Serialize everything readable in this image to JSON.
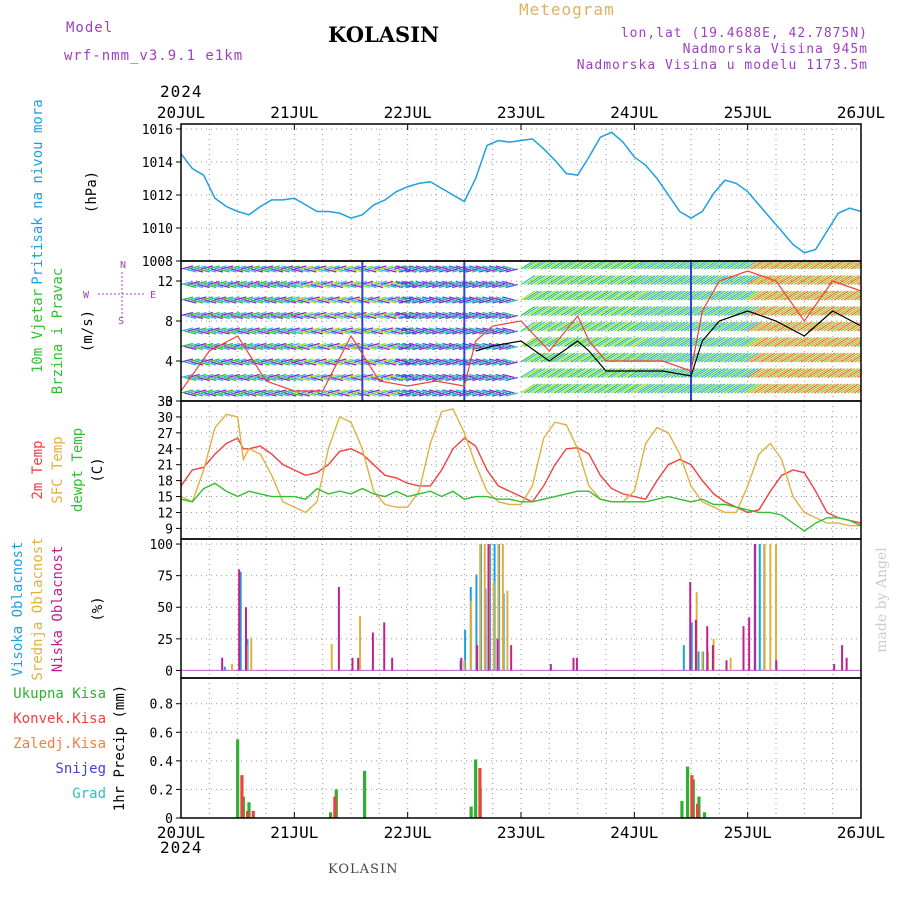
{
  "header": {
    "model_label": "Model",
    "model_name": "wrf-nmm_v3.9.1 e1km",
    "location": "KOLASIN",
    "product": "Meteogram",
    "coords": "lon,lat (19.4688E, 42.7875N)",
    "elevation": "Nadmorska Visina 945m",
    "model_elevation": "Nadmorska Visina u modelu 1173.5m",
    "footer_location": "KOLASIN",
    "credit": "made by Angel"
  },
  "time_axis": {
    "year": "2024",
    "labels": [
      "20JUL",
      "21JUL",
      "22JUL",
      "23JUL",
      "24JUL",
      "25JUL",
      "26JUL"
    ],
    "days": 6
  },
  "colors": {
    "pressure": "#1ea0e0",
    "temp2m": "#f04040",
    "sfc_temp": "#e0b040",
    "dewpt": "#30c030",
    "high_cloud": "#1ea0e0",
    "mid_cloud": "#e0b040",
    "low_cloud": "#c02090",
    "precip_total": "#30b030",
    "precip_conv": "#f04040",
    "precip_frz": "#f08040",
    "snow": "#4040e0",
    "graupel": "#30c0c0",
    "wind_gust": "#f04040",
    "wind_speed": "#000000",
    "legend_wind": "#a040c0"
  },
  "chart_data": [
    {
      "type": "line",
      "name": "pressure",
      "ylabel": "(hPa)",
      "panel_label": "Pritisak na nivou mora",
      "ylim": [
        1008,
        1016.3
      ],
      "yticks": [
        1008,
        1010,
        1012,
        1014,
        1016
      ],
      "series": [
        {
          "x": [
            0,
            0.1,
            0.2,
            0.3,
            0.4,
            0.5,
            0.6,
            0.7,
            0.8,
            0.9,
            1.0,
            1.1,
            1.2,
            1.3,
            1.4,
            1.5,
            1.6,
            1.7,
            1.8,
            1.9,
            2.0,
            2.1,
            2.2,
            2.3,
            2.4,
            2.5,
            2.6,
            2.7,
            2.8,
            2.9,
            3.0,
            3.1,
            3.2,
            3.3,
            3.4,
            3.5,
            3.6,
            3.7,
            3.8,
            3.9,
            4.0,
            4.1,
            4.2,
            4.3,
            4.4,
            4.5,
            4.6,
            4.7,
            4.8,
            4.9,
            5.0,
            5.1,
            5.2,
            5.3,
            5.4,
            5.5,
            5.6,
            5.7,
            5.8,
            5.9,
            6.0
          ],
          "values": [
            1014.5,
            1013.6,
            1013.2,
            1011.8,
            1011.3,
            1011.0,
            1010.8,
            1011.3,
            1011.7,
            1011.7,
            1011.8,
            1011.4,
            1011.0,
            1011.0,
            1010.9,
            1010.6,
            1010.8,
            1011.4,
            1011.7,
            1012.2,
            1012.5,
            1012.7,
            1012.8,
            1012.4,
            1012.0,
            1011.6,
            1013.0,
            1015.0,
            1015.3,
            1015.2,
            1015.3,
            1015.4,
            1014.8,
            1014.1,
            1013.3,
            1013.2,
            1014.3,
            1015.5,
            1015.8,
            1015.2,
            1014.3,
            1013.8,
            1013.0,
            1012.0,
            1011.0,
            1010.6,
            1011.0,
            1012.1,
            1012.9,
            1012.7,
            1012.2,
            1011.4,
            1010.6,
            1009.8,
            1009.0,
            1008.5,
            1008.7,
            1009.8,
            1010.9,
            1011.2,
            1011.0
          ]
        }
      ]
    },
    {
      "type": "line",
      "name": "wind",
      "ylabel": "(m/s)",
      "panel_label": [
        "10m Vjetar",
        "Brzina i Pravac"
      ],
      "legend_wind": [
        "N",
        "W",
        "E",
        "S"
      ],
      "ylim": [
        0,
        14
      ],
      "yticks": [
        0,
        4,
        8,
        12
      ],
      "series": [
        {
          "name_key": "wind_gust",
          "x": [
            0,
            0.25,
            0.5,
            0.75,
            1.0,
            1.25,
            1.5,
            1.75,
            2.0,
            2.25,
            2.5,
            2.6,
            2.75,
            3.0,
            3.25,
            3.5,
            3.6,
            3.75,
            4.0,
            4.25,
            4.5,
            4.6,
            4.75,
            5.0,
            5.25,
            5.5,
            5.75,
            6.0
          ],
          "values": [
            1,
            5,
            6.5,
            2,
            1,
            1,
            6.5,
            2,
            1.5,
            2,
            1.5,
            6,
            7.5,
            8,
            5,
            8.5,
            6,
            4,
            4,
            4,
            3,
            9,
            12,
            13,
            12,
            8,
            12,
            11
          ]
        },
        {
          "name_key": "wind_speed",
          "x": [
            2.6,
            2.75,
            3.0,
            3.25,
            3.5,
            3.6,
            3.75,
            4.0,
            4.25,
            4.5,
            4.6,
            4.75,
            5.0,
            5.25,
            5.5,
            5.75,
            6.0
          ],
          "values": [
            5,
            5.5,
            6,
            4,
            6,
            5,
            3,
            3,
            3,
            2.5,
            6,
            8,
            9,
            8,
            6.5,
            9,
            7.5
          ]
        }
      ]
    },
    {
      "type": "line",
      "name": "temperature",
      "ylabel": "(C)",
      "panel_label": [
        "2m Temp",
        "SFC Temp",
        "dewpt Temp"
      ],
      "ylim": [
        7,
        33
      ],
      "yticks": [
        9,
        12,
        15,
        18,
        21,
        24,
        27,
        30,
        33
      ],
      "series": [
        {
          "name_key": "temp2m",
          "x": [
            0,
            0.1,
            0.2,
            0.3,
            0.4,
            0.5,
            0.55,
            0.6,
            0.7,
            0.8,
            0.9,
            1.0,
            1.1,
            1.2,
            1.3,
            1.4,
            1.5,
            1.6,
            1.7,
            1.8,
            1.9,
            2.0,
            2.1,
            2.2,
            2.3,
            2.4,
            2.5,
            2.6,
            2.7,
            2.8,
            2.9,
            3.0,
            3.1,
            3.2,
            3.3,
            3.4,
            3.5,
            3.6,
            3.7,
            3.8,
            3.9,
            4.0,
            4.1,
            4.2,
            4.3,
            4.4,
            4.5,
            4.6,
            4.7,
            4.8,
            4.9,
            5.0,
            5.1,
            5.2,
            5.3,
            5.4,
            5.5,
            5.6,
            5.7,
            5.8,
            5.9,
            6.0
          ],
          "values": [
            17,
            20,
            20.5,
            23,
            25,
            26,
            24,
            24,
            24.5,
            23,
            21,
            20,
            19,
            19.5,
            21,
            23.5,
            24,
            23,
            21,
            19,
            18.5,
            17.5,
            17,
            17,
            20,
            24,
            26,
            24.5,
            20,
            17,
            16,
            15,
            14,
            17,
            21,
            24,
            24.2,
            23,
            19,
            16.5,
            15.5,
            15,
            14.5,
            18,
            21,
            22,
            21,
            18,
            15.5,
            14,
            13,
            12,
            12.5,
            16,
            19,
            20,
            19.5,
            16,
            12,
            11,
            10.5,
            10
          ]
        },
        {
          "name_key": "sfc_temp",
          "x": [
            0,
            0.1,
            0.2,
            0.3,
            0.4,
            0.5,
            0.55,
            0.6,
            0.7,
            0.8,
            0.9,
            1.0,
            1.1,
            1.2,
            1.3,
            1.4,
            1.5,
            1.6,
            1.7,
            1.8,
            1.9,
            2.0,
            2.1,
            2.2,
            2.3,
            2.4,
            2.5,
            2.6,
            2.7,
            2.8,
            2.9,
            3.0,
            3.1,
            3.2,
            3.3,
            3.4,
            3.5,
            3.6,
            3.7,
            3.8,
            3.9,
            4.0,
            4.1,
            4.2,
            4.3,
            4.4,
            4.5,
            4.6,
            4.7,
            4.8,
            4.9,
            5.0,
            5.1,
            5.2,
            5.3,
            5.4,
            5.5,
            5.6,
            5.7,
            5.8,
            5.9,
            6.0
          ],
          "values": [
            15,
            14,
            20,
            28,
            30.5,
            30,
            22,
            24,
            23,
            19,
            14,
            13,
            12,
            14,
            24,
            30,
            29,
            24,
            16,
            13.5,
            13,
            13,
            16,
            25,
            31,
            31.5,
            27,
            21,
            16,
            14,
            13.5,
            13.5,
            17,
            26,
            29,
            28.5,
            24,
            17,
            14.5,
            14,
            14,
            16,
            25,
            28,
            27,
            23,
            17,
            14,
            13,
            12,
            12,
            17,
            23,
            25,
            22,
            15,
            12,
            11,
            10,
            10,
            9.5,
            9.5
          ]
        },
        {
          "name_key": "dewpt",
          "x": [
            0,
            0.1,
            0.2,
            0.3,
            0.4,
            0.5,
            0.6,
            0.7,
            0.8,
            0.9,
            1.0,
            1.1,
            1.2,
            1.3,
            1.4,
            1.5,
            1.6,
            1.7,
            1.8,
            1.9,
            2.0,
            2.1,
            2.2,
            2.3,
            2.4,
            2.5,
            2.6,
            2.7,
            2.8,
            2.9,
            3.0,
            3.1,
            3.2,
            3.3,
            3.4,
            3.5,
            3.6,
            3.7,
            3.8,
            3.9,
            4.0,
            4.1,
            4.2,
            4.3,
            4.4,
            4.5,
            4.6,
            4.7,
            4.8,
            4.9,
            5.0,
            5.1,
            5.2,
            5.3,
            5.4,
            5.5,
            5.6,
            5.7,
            5.8,
            5.9,
            6.0
          ],
          "values": [
            14.5,
            14,
            16.5,
            17.5,
            16,
            15,
            16,
            15.5,
            15,
            15,
            15,
            14.5,
            16.5,
            15.5,
            16,
            15.5,
            16.5,
            15.5,
            15,
            16,
            15,
            15.5,
            16,
            15,
            16,
            14.5,
            15,
            15,
            14.5,
            14.5,
            14,
            14,
            14.5,
            15,
            15.5,
            16,
            16,
            14.5,
            14,
            14,
            14,
            14,
            14.5,
            15,
            14.5,
            14,
            14.5,
            13.5,
            13.5,
            13,
            12.5,
            12,
            12,
            11.5,
            10,
            8.5,
            10,
            11,
            11,
            10.5,
            9.5
          ]
        }
      ]
    },
    {
      "type": "bar",
      "name": "cloud_cover",
      "ylabel": "(%)",
      "panel_label": [
        "Visoka Oblacnost",
        "Srednja Oblacnost",
        "Niska Oblacnost"
      ],
      "ylim": [
        -6,
        104
      ],
      "yticks": [
        0,
        25,
        50,
        75,
        100
      ],
      "series": [
        {
          "name_key": "high_cloud",
          "x": [
            0.4,
            0.54,
            0.6,
            2.48,
            2.52,
            2.57,
            2.62,
            2.66,
            2.7,
            2.74,
            2.78,
            2.82,
            2.86,
            4.45,
            4.52,
            4.58,
            4.62,
            5.08,
            5.12,
            5.16
          ],
          "values": [
            3,
            78,
            25,
            8,
            32,
            66,
            76,
            100,
            65,
            100,
            100,
            100,
            61,
            20,
            38,
            15,
            15,
            100,
            100,
            100
          ]
        },
        {
          "name_key": "mid_cloud",
          "x": [
            0.45,
            0.58,
            0.62,
            1.33,
            1.58,
            2.5,
            2.56,
            2.64,
            2.68,
            2.72,
            2.76,
            2.8,
            2.84,
            2.88,
            4.55,
            4.6,
            4.65,
            4.7,
            4.85,
            5.15,
            5.2,
            5.25
          ],
          "values": [
            5,
            20,
            26,
            21,
            43,
            8,
            55,
            100,
            100,
            100,
            70,
            100,
            100,
            63,
            62,
            15,
            15,
            25,
            10,
            100,
            100,
            100
          ]
        },
        {
          "name_key": "low_cloud",
          "x": [
            0.35,
            0.5,
            0.56,
            1.38,
            1.5,
            1.55,
            1.68,
            1.78,
            1.85,
            2.46,
            2.6,
            2.7,
            2.78,
            2.9,
            3.25,
            3.45,
            3.48,
            4.48,
            4.53,
            4.63,
            4.68,
            4.8,
            4.95,
            5.0,
            5.05,
            5.24,
            5.75,
            5.82,
            5.86
          ],
          "values": [
            10,
            80,
            50,
            66,
            10,
            10,
            30,
            38,
            10,
            10,
            20,
            100,
            25,
            20,
            5,
            10,
            10,
            70,
            40,
            35,
            20,
            8,
            35,
            42,
            100,
            8,
            5,
            20,
            10
          ]
        }
      ]
    },
    {
      "type": "bar",
      "name": "precipitation",
      "ylabel": "1hr Precip (mm)",
      "panel_label": [
        "Ukupna Kisa",
        "Konvek.Kisa",
        "Zaledj.Kisa",
        "Snijeg",
        "Grad"
      ],
      "ylim": [
        0,
        0.98
      ],
      "yticks": [
        0.0,
        0.2,
        0.4,
        0.6,
        0.8
      ],
      "series": [
        {
          "name_key": "precip_total",
          "x": [
            0.5,
            0.55,
            0.6,
            1.32,
            1.37,
            1.62,
            2.56,
            2.6,
            2.64,
            4.42,
            4.47,
            4.52,
            4.57,
            4.62
          ],
          "values": [
            0.55,
            0.15,
            0.11,
            0.04,
            0.2,
            0.33,
            0.08,
            0.41,
            0.21,
            0.12,
            0.36,
            0.27,
            0.15,
            0.04
          ]
        },
        {
          "name_key": "precip_conv",
          "x": [
            0.52,
            0.57,
            0.62,
            1.34,
            2.62,
            4.49,
            4.54
          ],
          "values": [
            0.3,
            0.05,
            0.05,
            0.15,
            0.35,
            0.3,
            0.1
          ]
        }
      ]
    }
  ]
}
